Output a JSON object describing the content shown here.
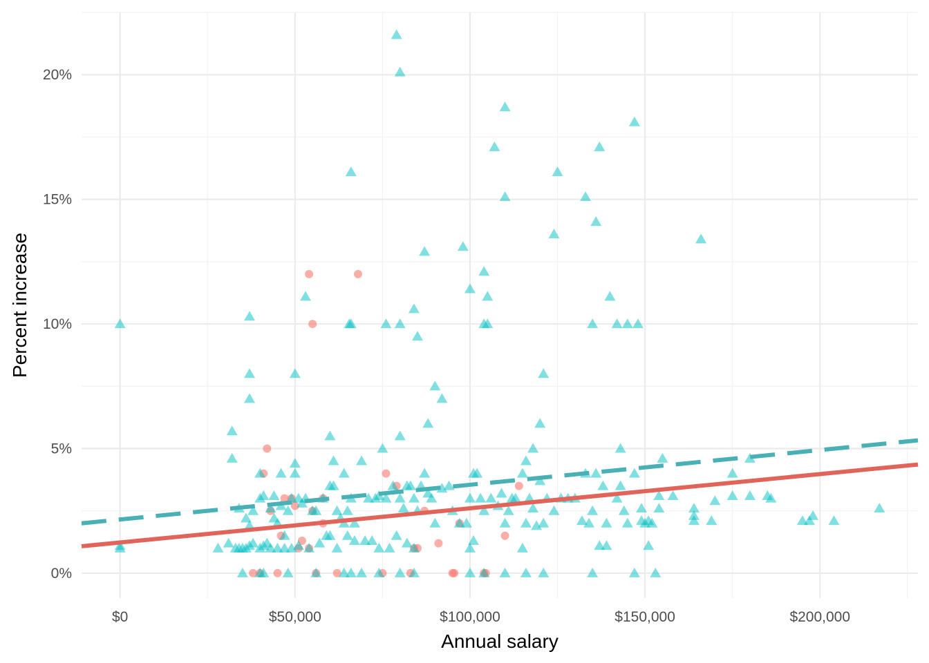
{
  "chart_data": {
    "type": "scatter",
    "title": "",
    "xlabel": "Annual salary",
    "ylabel": "Percent increase",
    "xlim": [
      -11000,
      228000
    ],
    "ylim": [
      -1,
      22.5
    ],
    "x_ticks": [
      0,
      50000,
      100000,
      150000,
      200000
    ],
    "x_tick_labels": [
      "$0",
      "$50,000",
      "$100,000",
      "$150,000",
      "$200,000"
    ],
    "y_ticks": [
      0,
      5,
      10,
      15,
      20
    ],
    "y_tick_labels": [
      "0%",
      "5%",
      "10%",
      "15%",
      "20%"
    ],
    "grid": true,
    "legend": "none",
    "colors": {
      "red_points": "#F8766D",
      "teal_points": "#00BFC4",
      "red_line": "#E0645A",
      "teal_line": "#49B0B5",
      "grid": "#EBEBEB"
    },
    "series": [
      {
        "marker": "circle",
        "color": "#F8766D",
        "points": [
          [
            54000,
            12
          ],
          [
            68000,
            12
          ],
          [
            55000,
            10
          ],
          [
            42000,
            5
          ],
          [
            41000,
            4
          ],
          [
            76000,
            4
          ],
          [
            114000,
            3.5
          ],
          [
            79000,
            3.5
          ],
          [
            110000,
            1.5
          ],
          [
            91000,
            1.2
          ],
          [
            85000,
            1
          ],
          [
            84000,
            1
          ],
          [
            55000,
            2.5
          ],
          [
            58000,
            2
          ],
          [
            47000,
            3
          ],
          [
            49000,
            3
          ],
          [
            50000,
            2.7
          ],
          [
            43000,
            2.5
          ],
          [
            46000,
            1.5
          ],
          [
            51000,
            1
          ],
          [
            52000,
            1.3
          ],
          [
            54000,
            1
          ],
          [
            87000,
            2.5
          ],
          [
            97000,
            2
          ],
          [
            58000,
            3
          ],
          [
            38000,
            0
          ],
          [
            40000,
            0
          ],
          [
            45000,
            0
          ],
          [
            56000,
            0
          ],
          [
            62000,
            0
          ],
          [
            75000,
            0
          ],
          [
            83000,
            0
          ],
          [
            95000,
            0
          ],
          [
            95500,
            0
          ],
          [
            104000,
            0
          ],
          [
            104500,
            0
          ]
        ]
      },
      {
        "marker": "triangle",
        "color": "#00BFC4",
        "points": [
          [
            0,
            10
          ],
          [
            0,
            1
          ],
          [
            0,
            1.1
          ],
          [
            79000,
            21.6
          ],
          [
            80000,
            20.1
          ],
          [
            110000,
            18.7
          ],
          [
            147000,
            18.1
          ],
          [
            107000,
            17.1
          ],
          [
            137000,
            17.1
          ],
          [
            66000,
            16.1
          ],
          [
            125000,
            16.1
          ],
          [
            110000,
            15.1
          ],
          [
            133000,
            15.1
          ],
          [
            136000,
            14.1
          ],
          [
            166000,
            13.4
          ],
          [
            124000,
            13.6
          ],
          [
            87000,
            12.9
          ],
          [
            98000,
            13.1
          ],
          [
            104000,
            12.1
          ],
          [
            100000,
            11.4
          ],
          [
            53000,
            11.1
          ],
          [
            105000,
            11.1
          ],
          [
            140000,
            11.1
          ],
          [
            37000,
            10.3
          ],
          [
            84000,
            10.6
          ],
          [
            66000,
            10
          ],
          [
            65500,
            10
          ],
          [
            76000,
            10
          ],
          [
            80000,
            10
          ],
          [
            104000,
            10
          ],
          [
            105000,
            10
          ],
          [
            135000,
            10
          ],
          [
            142000,
            10
          ],
          [
            145000,
            10
          ],
          [
            148000,
            10
          ],
          [
            85000,
            9.5
          ],
          [
            37000,
            8
          ],
          [
            50000,
            8
          ],
          [
            121000,
            8
          ],
          [
            90000,
            7.5
          ],
          [
            92000,
            7
          ],
          [
            37000,
            7
          ],
          [
            88000,
            6
          ],
          [
            120000,
            6
          ],
          [
            32000,
            5.7
          ],
          [
            60000,
            5.5
          ],
          [
            80000,
            5.5
          ],
          [
            32000,
            4.6
          ],
          [
            75000,
            5
          ],
          [
            118000,
            5
          ],
          [
            143000,
            5
          ],
          [
            155000,
            4.6
          ],
          [
            180000,
            4.6
          ],
          [
            195000,
            2.1
          ],
          [
            197000,
            2.1
          ],
          [
            198000,
            2.3
          ],
          [
            204000,
            2.1
          ],
          [
            217000,
            2.6
          ],
          [
            185000,
            3.1
          ],
          [
            186000,
            3
          ],
          [
            175000,
            3.1
          ],
          [
            175000,
            4
          ],
          [
            180000,
            3.1
          ],
          [
            170000,
            2.9
          ],
          [
            169000,
            2.1
          ],
          [
            164000,
            2.1
          ],
          [
            164000,
            2.6
          ],
          [
            164000,
            2.3
          ],
          [
            158000,
            3.1
          ],
          [
            154000,
            2.6
          ],
          [
            151000,
            1.1
          ],
          [
            149000,
            2.1
          ],
          [
            154000,
            3.1
          ],
          [
            139000,
            1.1
          ],
          [
            137000,
            1.1
          ],
          [
            132000,
            2.1
          ],
          [
            28000,
            1
          ],
          [
            31000,
            1.2
          ],
          [
            33000,
            1
          ],
          [
            34000,
            1
          ],
          [
            35000,
            1
          ],
          [
            36000,
            1
          ],
          [
            37000,
            1.1
          ],
          [
            38000,
            1.2
          ],
          [
            40000,
            1
          ],
          [
            41000,
            1.1
          ],
          [
            42000,
            1.2
          ],
          [
            43000,
            1
          ],
          [
            45000,
            1
          ],
          [
            47000,
            1
          ],
          [
            49000,
            1
          ],
          [
            51000,
            1.1
          ],
          [
            54000,
            1
          ],
          [
            57000,
            1.2
          ],
          [
            60000,
            1.5
          ],
          [
            62000,
            1
          ],
          [
            65000,
            1.5
          ],
          [
            67000,
            1.3
          ],
          [
            70000,
            1.3
          ],
          [
            72000,
            1.3
          ],
          [
            74000,
            1
          ],
          [
            77000,
            1
          ],
          [
            79000,
            1.5
          ],
          [
            82000,
            1.2
          ],
          [
            84000,
            1
          ],
          [
            100000,
            1
          ],
          [
            101000,
            1.3
          ],
          [
            115000,
            1
          ],
          [
            34000,
            2.6
          ],
          [
            36000,
            2.2
          ],
          [
            37000,
            1.9
          ],
          [
            38000,
            2.5
          ],
          [
            40000,
            3
          ],
          [
            41000,
            3.1
          ],
          [
            43000,
            2.6
          ],
          [
            44000,
            2.2
          ],
          [
            45000,
            2
          ],
          [
            46000,
            2.7
          ],
          [
            47000,
            1.5
          ],
          [
            48000,
            2.5
          ],
          [
            49000,
            3
          ],
          [
            50000,
            4.4
          ],
          [
            50000,
            4
          ],
          [
            51000,
            3
          ],
          [
            52000,
            2.8
          ],
          [
            53000,
            3
          ],
          [
            55000,
            2.5
          ],
          [
            56000,
            2.5
          ],
          [
            58000,
            3
          ],
          [
            59000,
            1.5
          ],
          [
            60000,
            3.5
          ],
          [
            61000,
            3.5
          ],
          [
            62000,
            2.5
          ],
          [
            63000,
            2.2
          ],
          [
            64000,
            2
          ],
          [
            65000,
            2.5
          ],
          [
            66000,
            3
          ],
          [
            67000,
            2
          ],
          [
            69000,
            4.5
          ],
          [
            71000,
            3
          ],
          [
            73000,
            3
          ],
          [
            74000,
            3.1
          ],
          [
            76000,
            3
          ],
          [
            78000,
            3.5
          ],
          [
            80000,
            3
          ],
          [
            81000,
            2.6
          ],
          [
            82000,
            3.5
          ],
          [
            83000,
            3.5
          ],
          [
            84000,
            3
          ],
          [
            85000,
            2.5
          ],
          [
            86000,
            3.5
          ],
          [
            87000,
            4
          ],
          [
            88000,
            3.2
          ],
          [
            89000,
            3
          ],
          [
            90000,
            2
          ],
          [
            92000,
            3.4
          ],
          [
            94000,
            3.5
          ],
          [
            95000,
            2.5
          ],
          [
            97000,
            2
          ],
          [
            99000,
            2
          ],
          [
            100000,
            3
          ],
          [
            101000,
            4
          ],
          [
            102000,
            4
          ],
          [
            103000,
            3
          ],
          [
            104000,
            2.5
          ],
          [
            106000,
            3
          ],
          [
            108000,
            2.7
          ],
          [
            109000,
            3.2
          ],
          [
            110000,
            2
          ],
          [
            111000,
            2.5
          ],
          [
            112000,
            3
          ],
          [
            113000,
            3
          ],
          [
            115000,
            4
          ],
          [
            116000,
            2
          ],
          [
            117000,
            3
          ],
          [
            118000,
            2.6
          ],
          [
            119000,
            1.9
          ],
          [
            120000,
            3.7
          ],
          [
            121000,
            2
          ],
          [
            122000,
            3
          ],
          [
            124000,
            2.5
          ],
          [
            126000,
            3
          ],
          [
            128000,
            3
          ],
          [
            130000,
            3
          ],
          [
            133000,
            4
          ],
          [
            134000,
            2
          ],
          [
            135000,
            2.5
          ],
          [
            136000,
            4
          ],
          [
            138000,
            3.5
          ],
          [
            139000,
            2
          ],
          [
            142000,
            3
          ],
          [
            143000,
            3.5
          ],
          [
            144000,
            2.5
          ],
          [
            145000,
            2
          ],
          [
            147000,
            4
          ],
          [
            149000,
            2.6
          ],
          [
            150000,
            2
          ],
          [
            151000,
            2.1
          ],
          [
            152000,
            2
          ],
          [
            40000,
            4
          ],
          [
            46000,
            4
          ],
          [
            44000,
            3.1
          ],
          [
            61000,
            4.5
          ],
          [
            64000,
            4
          ],
          [
            116000,
            4.5
          ],
          [
            35000,
            0
          ],
          [
            40000,
            0
          ],
          [
            41000,
            0
          ],
          [
            48000,
            0
          ],
          [
            56000,
            0
          ],
          [
            64000,
            0
          ],
          [
            66000,
            0
          ],
          [
            69000,
            0
          ],
          [
            74000,
            0
          ],
          [
            80000,
            0
          ],
          [
            84000,
            0
          ],
          [
            100000,
            0
          ],
          [
            104000,
            0
          ],
          [
            110000,
            0
          ],
          [
            116000,
            0
          ],
          [
            121000,
            0
          ],
          [
            135000,
            0
          ],
          [
            147000,
            0
          ],
          [
            153000,
            0
          ]
        ]
      }
    ],
    "fit_lines": [
      {
        "color": "#E0645A",
        "style": "solid",
        "x": [
          -11000,
          228000
        ],
        "y": [
          1.08,
          4.36
        ]
      },
      {
        "color": "#49B0B5",
        "style": "dashed",
        "x": [
          -11000,
          228000
        ],
        "y": [
          2.0,
          5.33
        ]
      }
    ]
  }
}
